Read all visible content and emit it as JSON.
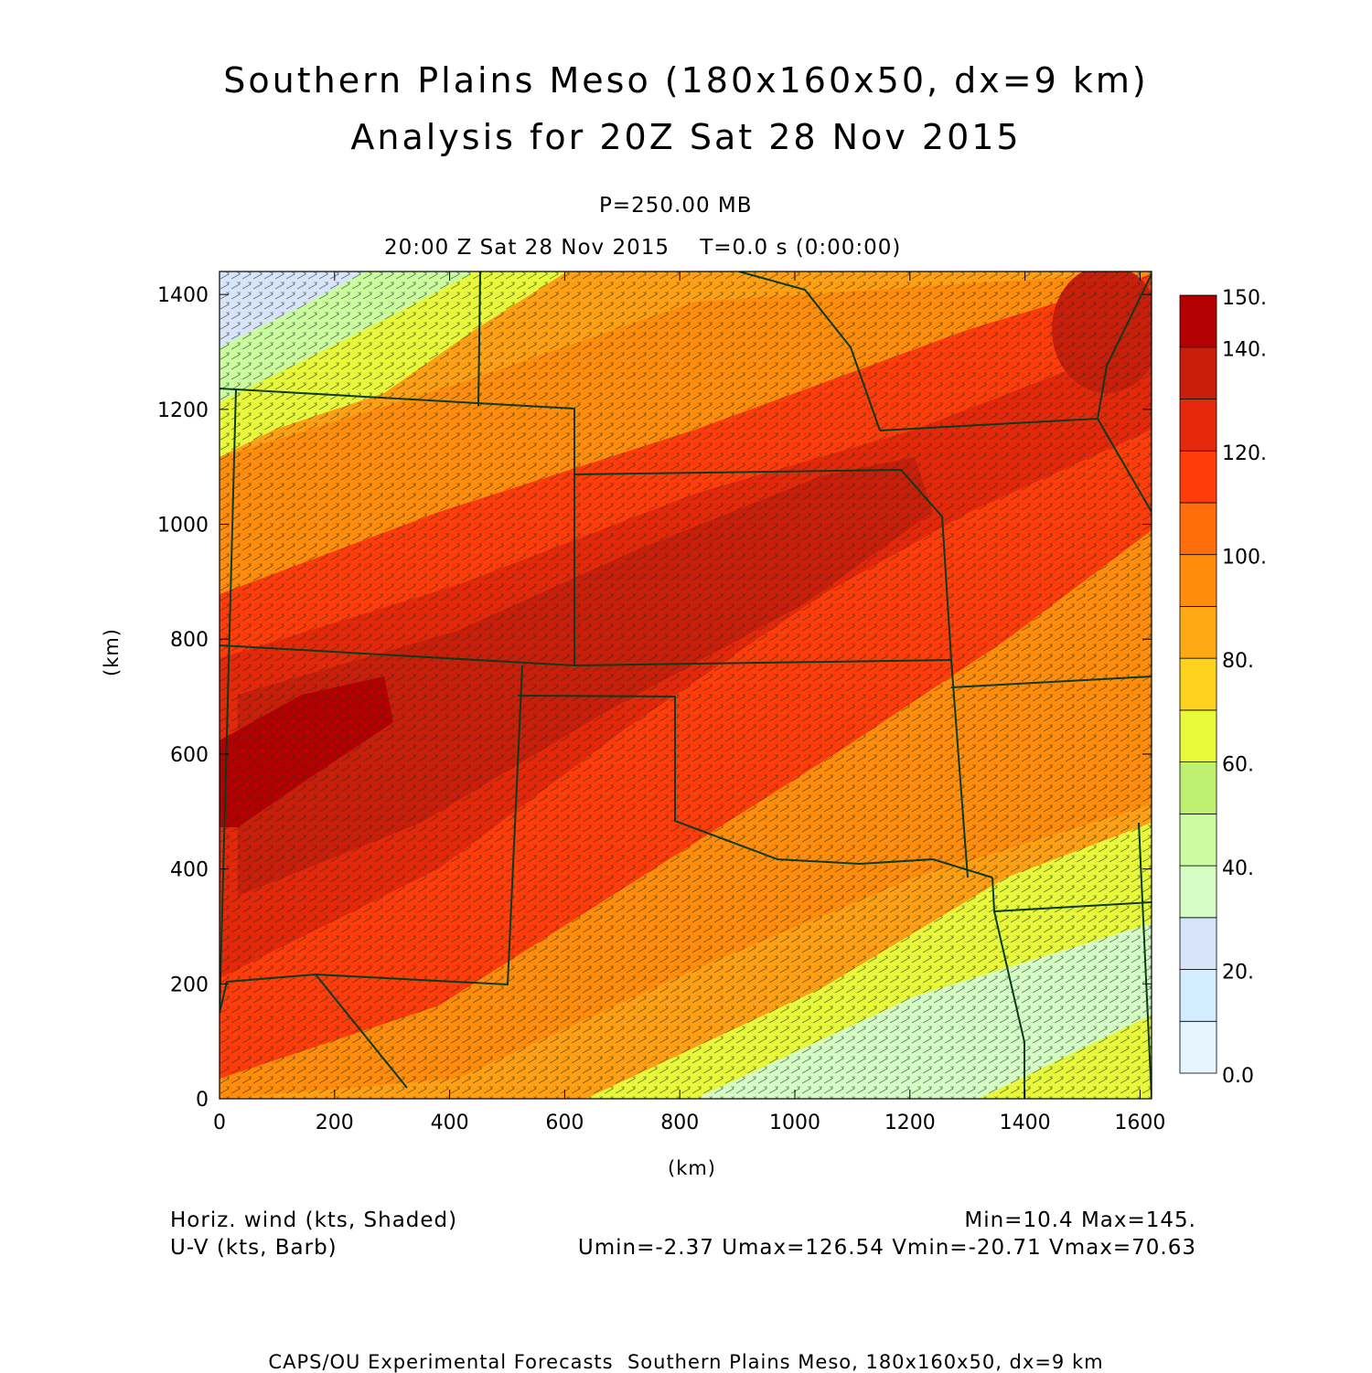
{
  "title_line1": "Southern Plains Meso (180x160x50, dx=9 km)",
  "title_line2": "Analysis for 20Z Sat 28 Nov 2015",
  "level": "P=250.00 MB",
  "valid_time": "20:00 Z Sat 28 Nov 2015    T=0.0 s (0:00:00)",
  "chart_data": {
    "type": "heatmap",
    "xlabel": "(km)",
    "ylabel": "(km)",
    "xlim": [
      0,
      1620
    ],
    "ylim": [
      0,
      1440
    ],
    "x_ticks": [
      "0",
      "200",
      "400",
      "600",
      "800",
      "1000",
      "1200",
      "1400",
      "1600"
    ],
    "y_ticks": [
      "0",
      "200",
      "400",
      "600",
      "800",
      "1000",
      "1200",
      "1400"
    ],
    "field": "Horizontal wind speed (kts), shaded; U-V wind barbs",
    "jet_core": "SW-NE oriented jet, max ~145 kts over northeastern New Mexico near (20-300 km, 500-700 km)",
    "colorbar": {
      "labels": [
        "150.",
        "140.",
        "120.",
        "100.",
        "80.",
        "60.",
        "40.",
        "20.",
        "0.0"
      ],
      "levels": [
        0,
        10,
        20,
        30,
        40,
        50,
        60,
        70,
        80,
        90,
        100,
        110,
        120,
        130,
        140,
        150
      ],
      "colors": [
        "#e6f5ff",
        "#d3ecff",
        "#d8e4fa",
        "#d6fcc6",
        "#ccfca0",
        "#c0f070",
        "#e8f83a",
        "#ffd21e",
        "#ffaa14",
        "#ff8c0a",
        "#ff6e0a",
        "#ff3c0a",
        "#e6280a",
        "#c81e0a",
        "#b40000"
      ]
    }
  },
  "footer": {
    "shaded_label": "Horiz. wind (kts, Shaded)",
    "barb_label": "U-V (kts, Barb)",
    "minmax": "Min=10.4 Max=145.",
    "uv_stats": "Umin=-2.37 Umax=126.54 Vmin=-20.71 Vmax=70.63",
    "credit": "CAPS/OU Experimental Forecasts  Southern Plains Meso, 180x160x50, dx=9 km"
  }
}
